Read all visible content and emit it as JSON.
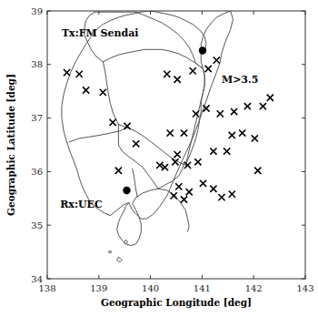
{
  "chart_data": {
    "type": "scatter",
    "xlabel": "Geographic Longitude [deg]",
    "ylabel": "Geographic Latitude [deg]",
    "xlim": [
      138,
      143
    ],
    "ylim": [
      34,
      39
    ],
    "xticks": [
      138,
      139,
      140,
      141,
      142,
      143
    ],
    "yticks": [
      34,
      35,
      36,
      37,
      38,
      39
    ],
    "grid": false,
    "annotations": [
      {
        "text": "Tx:FM Sendai",
        "x": 138.28,
        "y": 38.52
      },
      {
        "text": "Rx:UEC",
        "x": 138.25,
        "y": 35.32
      },
      {
        "text": "M>3.5",
        "x": 141.38,
        "y": 37.65
      }
    ],
    "series": [
      {
        "type": "line",
        "color": "#555555",
        "x": [
          141.55,
          141.6,
          141.55,
          141.45,
          141.38,
          141.35,
          141.28,
          141.18,
          141.08,
          140.98,
          140.88,
          140.75,
          140.62,
          140.52,
          140.42,
          140.32,
          140.18,
          140.05,
          139.92,
          139.82,
          139.75,
          139.65,
          139.58
        ],
        "values": [
          39.0,
          38.85,
          38.65,
          38.42,
          38.22,
          38.05,
          37.85,
          37.6,
          37.32,
          37.05,
          36.78,
          36.48,
          36.22,
          36.0,
          35.78,
          35.55,
          35.35,
          35.2,
          35.12,
          35.12,
          35.18,
          35.28,
          35.42
        ]
      },
      {
        "type": "line",
        "color": "#555555",
        "x": [
          139.98,
          139.82,
          139.68,
          139.52,
          139.38,
          139.22,
          139.08,
          138.95,
          138.85,
          138.75,
          138.65,
          138.55,
          138.45,
          138.38,
          138.32,
          138.28,
          138.28,
          138.32,
          138.38
        ],
        "values": [
          39.0,
          38.98,
          38.95,
          38.92,
          38.88,
          38.82,
          38.75,
          38.65,
          38.52,
          38.38,
          38.22,
          38.05,
          37.85,
          37.65,
          37.45,
          37.22,
          37.0,
          36.75,
          36.55
        ]
      },
      {
        "type": "line",
        "color": "#555555",
        "x": [
          139.58,
          139.52,
          139.48,
          139.42,
          139.38,
          139.35,
          139.38,
          139.45,
          139.52,
          139.62,
          139.72,
          139.78,
          139.82,
          139.82,
          139.78,
          139.72,
          139.65,
          139.72,
          139.85,
          140.0,
          140.15,
          140.32,
          140.48,
          140.58,
          140.68,
          140.72,
          140.75,
          140.72
        ],
        "values": [
          35.42,
          35.35,
          35.25,
          35.15,
          35.05,
          34.92,
          34.82,
          34.72,
          34.65,
          34.62,
          34.65,
          34.75,
          34.88,
          35.02,
          35.15,
          35.28,
          35.4,
          35.52,
          35.6,
          35.65,
          35.68,
          35.65,
          35.55,
          35.42,
          35.28,
          35.12,
          34.98,
          34.88
        ]
      },
      {
        "type": "line",
        "color": "#555555",
        "x": [
          141.55,
          141.42,
          141.28,
          141.18,
          141.08,
          141.02,
          140.98,
          140.98,
          140.98,
          141.02,
          141.05,
          141.05,
          141.02,
          140.98
        ],
        "values": [
          39.0,
          38.95,
          38.88,
          38.78,
          38.65,
          38.52,
          38.38,
          38.22,
          38.05,
          37.92,
          37.78,
          37.62,
          37.48,
          37.32
        ]
      },
      {
        "type": "line",
        "color": "#555555",
        "x": [
          139.98,
          140.12,
          140.28,
          140.42,
          140.55,
          140.68,
          140.82,
          140.95,
          141.05,
          141.08,
          141.05
        ],
        "values": [
          39.0,
          38.98,
          38.95,
          38.92,
          38.88,
          38.82,
          38.75,
          38.65,
          38.52,
          38.38,
          38.22
        ]
      },
      {
        "type": "line",
        "color": "#555555",
        "x": [
          139.38,
          139.55,
          139.72,
          139.88,
          140.02,
          140.15,
          140.28,
          140.42,
          140.55,
          140.68
        ],
        "values": [
          36.88,
          36.82,
          36.75,
          36.65,
          36.55,
          36.45,
          36.35,
          36.25,
          36.18,
          36.12
        ]
      },
      {
        "type": "line",
        "color": "#555555",
        "x": [
          138.42,
          138.62,
          138.82,
          139.02,
          139.22,
          139.38,
          139.55
        ],
        "values": [
          36.55,
          36.62,
          36.65,
          36.68,
          36.72,
          36.75,
          36.82
        ]
      },
      {
        "type": "line",
        "color": "#555555",
        "x": [
          138.38,
          138.45,
          138.52,
          138.58,
          138.62,
          138.68,
          138.75,
          138.82,
          138.92,
          139.02,
          139.12,
          139.22
        ],
        "values": [
          36.55,
          36.35,
          36.18,
          36.02,
          35.88,
          35.72,
          35.58,
          35.45,
          35.35,
          35.28,
          35.22,
          35.18
        ]
      },
      {
        "type": "line",
        "color": "#555555",
        "x": [
          139.22,
          139.35,
          139.48,
          139.58
        ],
        "values": [
          35.18,
          35.28,
          35.38,
          35.42
        ]
      },
      {
        "type": "line",
        "color": "#555555",
        "x": [
          140.68,
          140.75,
          140.82,
          140.88,
          140.92,
          140.95,
          140.98,
          140.98
        ],
        "values": [
          36.12,
          36.28,
          36.45,
          36.62,
          36.78,
          36.95,
          37.12,
          37.32
        ]
      },
      {
        "type": "line",
        "color": "#555555",
        "x": [
          139.38,
          139.28,
          139.22,
          139.18,
          139.15,
          139.12,
          139.08
        ],
        "values": [
          36.88,
          37.08,
          37.28,
          37.48,
          37.68,
          37.88,
          38.05
        ]
      },
      {
        "type": "line",
        "color": "#555555",
        "x": [
          139.08,
          139.22,
          139.38,
          139.55,
          139.72,
          139.88,
          140.05,
          140.22,
          140.38,
          140.55,
          140.72,
          140.88,
          141.02
        ],
        "values": [
          38.05,
          38.12,
          38.18,
          38.22,
          38.25,
          38.28,
          38.28,
          38.28,
          38.25,
          38.2,
          38.12,
          38.02,
          37.92
        ]
      },
      {
        "type": "line",
        "color": "#555555",
        "x": [
          139.08,
          138.95,
          138.85,
          138.78,
          138.72,
          138.72,
          138.75,
          138.82,
          138.92
        ],
        "values": [
          38.05,
          38.15,
          38.28,
          38.42,
          38.55,
          38.68,
          38.82,
          38.92,
          38.98
        ]
      },
      {
        "type": "line",
        "color": "#555555",
        "x": [
          138.92,
          139.12,
          139.32,
          139.52,
          139.72
        ],
        "values": [
          38.98,
          38.98,
          38.98,
          38.98,
          38.98
        ]
      },
      {
        "type": "line",
        "color": "#555555",
        "x": [
          139.72,
          139.88,
          140.05,
          140.22,
          140.38,
          140.52,
          140.65,
          140.75,
          140.82,
          140.88,
          141.02
        ],
        "values": [
          38.98,
          38.92,
          38.85,
          38.78,
          38.68,
          38.58,
          38.45,
          38.32,
          38.18,
          38.02,
          37.92
        ]
      },
      {
        "type": "line",
        "color": "#555555",
        "x": [
          141.02,
          141.05,
          141.05,
          141.02,
          140.98,
          140.68
        ],
        "values": [
          37.92,
          37.78,
          37.62,
          37.48,
          37.32,
          36.12
        ]
      },
      {
        "type": "line",
        "color": "#555555",
        "x": [
          140.15,
          140.05,
          139.95,
          139.85,
          139.72,
          139.58,
          139.45,
          139.38,
          139.38,
          139.38
        ],
        "values": [
          35.68,
          35.82,
          35.95,
          36.08,
          36.18,
          36.28,
          36.38,
          36.5,
          36.65,
          36.88
        ]
      },
      {
        "type": "line",
        "color": "#555555",
        "x": [
          140.15,
          140.28,
          140.42,
          140.55,
          140.62,
          140.65
        ],
        "values": [
          35.68,
          35.75,
          35.82,
          35.92,
          36.05,
          36.18
        ]
      },
      {
        "type": "line",
        "color": "#555555",
        "x": [
          139.75,
          139.72,
          139.7,
          139.68,
          139.65
        ],
        "values": [
          35.52,
          35.65,
          35.78,
          35.92,
          36.05
        ]
      },
      {
        "type": "line",
        "color": "#555555",
        "x": [
          139.38,
          139.42,
          139.45,
          139.42,
          139.38,
          139.35,
          139.38
        ],
        "values": [
          34.4,
          34.38,
          34.35,
          34.32,
          34.32,
          34.35,
          34.4
        ]
      },
      {
        "type": "line",
        "color": "#555555",
        "x": [
          139.22,
          139.25,
          139.22,
          139.18,
          139.22
        ],
        "values": [
          34.52,
          34.5,
          34.48,
          34.5,
          34.52
        ]
      },
      {
        "type": "line",
        "color": "#555555",
        "x": [
          139.52,
          139.55,
          139.55,
          139.52,
          139.48,
          139.52
        ],
        "values": [
          34.72,
          34.7,
          34.67,
          34.65,
          34.68,
          34.72
        ]
      },
      {
        "type": "scatter",
        "marker": "x",
        "color": "black",
        "x": [
          138.38,
          138.62,
          138.75,
          139.08,
          139.27,
          139.55,
          139.72,
          139.38,
          140.18,
          140.52,
          140.38,
          140.65,
          140.88,
          141.08,
          141.35,
          141.62,
          141.88,
          142.18,
          142.32,
          141.58,
          141.78,
          142.02,
          141.22,
          141.48,
          140.72,
          140.92,
          141.02,
          141.22,
          141.58,
          141.38,
          142.08,
          140.32,
          140.52,
          140.82,
          141.12,
          141.28,
          140.55,
          140.75,
          140.45,
          140.65,
          140.28,
          140.48
        ],
        "values": [
          37.85,
          37.82,
          37.52,
          37.48,
          36.92,
          36.85,
          36.52,
          36.02,
          36.12,
          36.32,
          36.72,
          36.72,
          37.08,
          37.18,
          37.08,
          37.12,
          37.22,
          37.22,
          37.38,
          36.68,
          36.72,
          36.62,
          36.38,
          36.38,
          36.12,
          36.18,
          35.78,
          35.68,
          35.58,
          35.52,
          36.02,
          37.82,
          37.72,
          37.88,
          37.92,
          38.08,
          35.72,
          35.62,
          35.55,
          35.48,
          36.08,
          36.18
        ]
      },
      {
        "type": "scatter",
        "marker": "circle",
        "color": "black",
        "x": [
          141.01
        ],
        "values": [
          38.26
        ]
      },
      {
        "type": "scatter",
        "marker": "circle",
        "color": "black",
        "x": [
          139.54
        ],
        "values": [
          35.65
        ]
      }
    ]
  }
}
